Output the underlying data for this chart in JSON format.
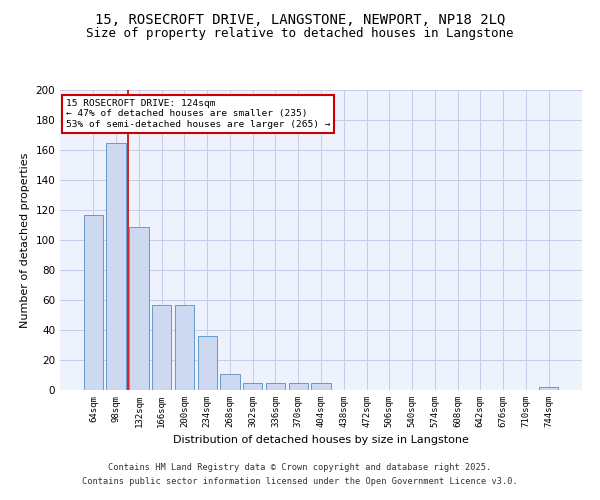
{
  "title_line1": "15, ROSECROFT DRIVE, LANGSTONE, NEWPORT, NP18 2LQ",
  "title_line2": "Size of property relative to detached houses in Langstone",
  "xlabel": "Distribution of detached houses by size in Langstone",
  "ylabel": "Number of detached properties",
  "categories": [
    "64sqm",
    "98sqm",
    "132sqm",
    "166sqm",
    "200sqm",
    "234sqm",
    "268sqm",
    "302sqm",
    "336sqm",
    "370sqm",
    "404sqm",
    "438sqm",
    "472sqm",
    "506sqm",
    "540sqm",
    "574sqm",
    "608sqm",
    "642sqm",
    "676sqm",
    "710sqm",
    "744sqm"
  ],
  "values": [
    117,
    165,
    109,
    57,
    57,
    36,
    11,
    5,
    5,
    5,
    5,
    0,
    0,
    0,
    0,
    0,
    0,
    0,
    0,
    0,
    2
  ],
  "bar_color": "#ccd9f0",
  "bar_edge_color": "#6699cc",
  "red_line_x": 1.5,
  "annotation_line1": "15 ROSECROFT DRIVE: 124sqm",
  "annotation_line2": "← 47% of detached houses are smaller (235)",
  "annotation_line3": "53% of semi-detached houses are larger (265) →",
  "annotation_box_color": "#ffffff",
  "annotation_box_edge": "#cc0000",
  "red_line_color": "#cc0000",
  "ylim": [
    0,
    200
  ],
  "yticks": [
    0,
    20,
    40,
    60,
    80,
    100,
    120,
    140,
    160,
    180,
    200
  ],
  "bg_color": "#eef2fc",
  "grid_color": "#c5cce8",
  "footer_line1": "Contains HM Land Registry data © Crown copyright and database right 2025.",
  "footer_line2": "Contains public sector information licensed under the Open Government Licence v3.0.",
  "title_fontsize": 10,
  "subtitle_fontsize": 9
}
